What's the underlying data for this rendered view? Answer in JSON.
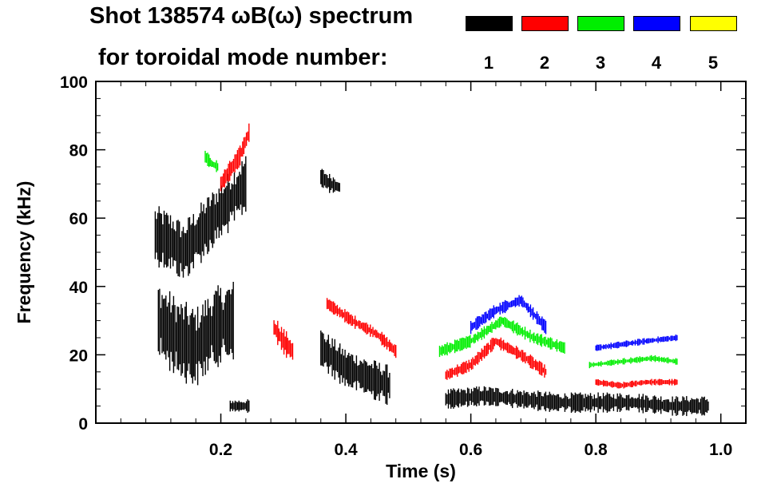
{
  "chart_data": {
    "type": "scatter",
    "title": "Shot 138574 ωB(ω) spectrum",
    "subtitle": "for toroidal mode number:",
    "xlabel": "Time (s)",
    "ylabel": "Frequency (kHz)",
    "xlim": [
      0.0,
      1.04
    ],
    "ylim": [
      0,
      100
    ],
    "x_ticks": [
      0.2,
      0.4,
      0.6,
      0.8,
      1.0
    ],
    "x_tick_labels": [
      "0.2",
      "0.4",
      "0.6",
      "0.8",
      "1.0"
    ],
    "y_ticks": [
      0,
      20,
      40,
      60,
      80,
      100
    ],
    "y_tick_labels": [
      "0",
      "20",
      "40",
      "60",
      "80",
      "100"
    ],
    "grid": false,
    "legend_placement": "top",
    "modes": [
      {
        "label": "1",
        "color": "#000000"
      },
      {
        "label": "2",
        "color": "#ff0000"
      },
      {
        "label": "3",
        "color": "#00ee00"
      },
      {
        "label": "4",
        "color": "#0000ff"
      },
      {
        "label": "5",
        "color": "#ffff00"
      }
    ],
    "series": [
      {
        "mode": "1",
        "segments": [
          {
            "x": [
              0.095,
              0.12,
              0.14,
              0.16,
              0.18,
              0.2,
              0.22,
              0.24
            ],
            "y": [
              55,
              53,
              50,
              54,
              58,
              62,
              66,
              70
            ],
            "spread": 9
          },
          {
            "x": [
              0.1,
              0.13,
              0.16,
              0.19,
              0.22
            ],
            "y": [
              30,
              25,
              22,
              28,
              30
            ],
            "spread": 12
          },
          {
            "x": [
              0.215,
              0.23,
              0.245
            ],
            "y": [
              5,
              5,
              5
            ],
            "spread": 2
          },
          {
            "x": [
              0.36,
              0.375,
              0.39
            ],
            "y": [
              72,
              70,
              69
            ],
            "spread": 3
          },
          {
            "x": [
              0.36,
              0.4,
              0.44,
              0.47
            ],
            "y": [
              22,
              16,
              13,
              11
            ],
            "spread": 6
          },
          {
            "x": [
              0.56,
              0.62,
              0.68,
              0.74,
              0.8,
              0.86,
              0.92,
              0.98
            ],
            "y": [
              7,
              8,
              7,
              6,
              6,
              6,
              5,
              5
            ],
            "spread": 3
          }
        ]
      },
      {
        "mode": "2",
        "segments": [
          {
            "x": [
              0.2,
              0.215,
              0.23,
              0.245
            ],
            "y": [
              70,
              74,
              78,
              85
            ],
            "spread": 3
          },
          {
            "x": [
              0.285,
              0.3,
              0.315
            ],
            "y": [
              28,
              24,
              21
            ],
            "spread": 4
          },
          {
            "x": [
              0.37,
              0.41,
              0.45,
              0.48
            ],
            "y": [
              35,
              30,
              26,
              21
            ],
            "spread": 2
          },
          {
            "x": [
              0.56,
              0.6,
              0.64,
              0.68,
              0.72
            ],
            "y": [
              14,
              17,
              24,
              20,
              15
            ],
            "spread": 2
          },
          {
            "x": [
              0.8,
              0.84,
              0.88,
              0.93
            ],
            "y": [
              12,
              11,
              12,
              12
            ],
            "spread": 1
          }
        ]
      },
      {
        "mode": "3",
        "segments": [
          {
            "x": [
              0.175,
              0.185,
              0.195
            ],
            "y": [
              78,
              76,
              75
            ],
            "spread": 2
          },
          {
            "x": [
              0.55,
              0.6,
              0.65,
              0.7,
              0.75
            ],
            "y": [
              21,
              24,
              30,
              25,
              22
            ],
            "spread": 2
          },
          {
            "x": [
              0.79,
              0.84,
              0.89,
              0.93
            ],
            "y": [
              17,
              18,
              19,
              18
            ],
            "spread": 1
          }
        ]
      },
      {
        "mode": "4",
        "segments": [
          {
            "x": [
              0.6,
              0.64,
              0.68,
              0.72
            ],
            "y": [
              28,
              33,
              36,
              28
            ],
            "spread": 2
          },
          {
            "x": [
              0.8,
              0.84,
              0.88,
              0.93
            ],
            "y": [
              22,
              23,
              24,
              25
            ],
            "spread": 1
          }
        ]
      },
      {
        "mode": "5",
        "segments": []
      }
    ]
  }
}
